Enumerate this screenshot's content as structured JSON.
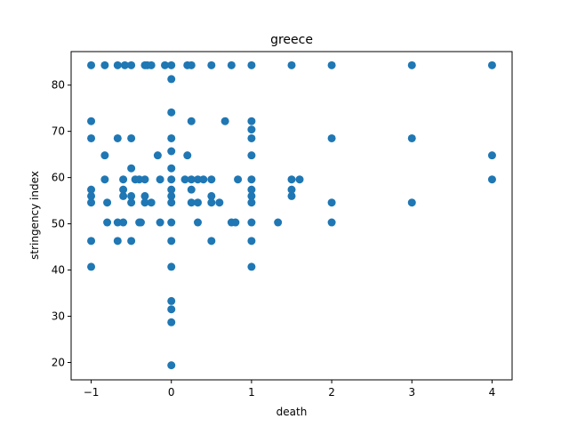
{
  "chart_data": {
    "type": "scatter",
    "title": "greece",
    "xlabel": "death",
    "ylabel": "stringency index",
    "xlim": [
      -1.25,
      4.25
    ],
    "ylim": [
      16.25,
      87.25
    ],
    "xticks": [
      -1,
      0,
      1,
      2,
      3,
      4
    ],
    "yticks": [
      20,
      30,
      40,
      50,
      60,
      70,
      80
    ],
    "grid": false,
    "color": "#1f77b4",
    "points": [
      [
        -1,
        84.3
      ],
      [
        -1,
        72.2
      ],
      [
        -1,
        68.5
      ],
      [
        -1,
        57.4
      ],
      [
        -1,
        56.0
      ],
      [
        -1,
        54.6
      ],
      [
        -1,
        46.3
      ],
      [
        -1,
        40.7
      ],
      [
        -0.83,
        84.3
      ],
      [
        -0.67,
        84.3
      ],
      [
        -0.58,
        84.3
      ],
      [
        -0.5,
        84.3
      ],
      [
        -0.33,
        84.3
      ],
      [
        -0.3,
        84.3
      ],
      [
        -0.25,
        84.3
      ],
      [
        -0.08,
        84.3
      ],
      [
        0,
        84.3
      ],
      [
        0.2,
        84.3
      ],
      [
        0.25,
        84.3
      ],
      [
        0.5,
        84.3
      ],
      [
        0.75,
        84.3
      ],
      [
        1,
        84.3
      ],
      [
        1.5,
        84.3
      ],
      [
        2,
        84.3
      ],
      [
        3,
        84.3
      ],
      [
        4,
        84.3
      ],
      [
        0,
        81.3
      ],
      [
        0,
        74.1
      ],
      [
        0.25,
        72.2
      ],
      [
        0.67,
        72.2
      ],
      [
        1,
        72.2
      ],
      [
        1,
        70.4
      ],
      [
        -0.67,
        68.5
      ],
      [
        -0.5,
        68.5
      ],
      [
        0,
        68.5
      ],
      [
        1,
        68.5
      ],
      [
        2,
        68.5
      ],
      [
        3,
        68.5
      ],
      [
        0,
        65.7
      ],
      [
        -0.83,
        64.8
      ],
      [
        -0.17,
        64.8
      ],
      [
        0.2,
        64.8
      ],
      [
        1,
        64.8
      ],
      [
        4,
        64.8
      ],
      [
        -0.5,
        62.0
      ],
      [
        0,
        62.0
      ],
      [
        -0.83,
        59.6
      ],
      [
        -0.6,
        59.6
      ],
      [
        -0.45,
        59.6
      ],
      [
        -0.4,
        59.6
      ],
      [
        -0.33,
        59.6
      ],
      [
        -0.14,
        59.6
      ],
      [
        0,
        59.6
      ],
      [
        0.17,
        59.6
      ],
      [
        0.25,
        59.6
      ],
      [
        0.33,
        59.6
      ],
      [
        0.4,
        59.6
      ],
      [
        0.5,
        59.6
      ],
      [
        0.83,
        59.6
      ],
      [
        1,
        59.6
      ],
      [
        1.5,
        59.6
      ],
      [
        1.6,
        59.6
      ],
      [
        4,
        59.6
      ],
      [
        -0.6,
        57.4
      ],
      [
        0,
        57.4
      ],
      [
        0.25,
        57.4
      ],
      [
        1,
        57.4
      ],
      [
        1.5,
        57.4
      ],
      [
        -0.6,
        56.0
      ],
      [
        -0.5,
        56.0
      ],
      [
        -0.33,
        56.0
      ],
      [
        0,
        56.0
      ],
      [
        0.5,
        56.0
      ],
      [
        1,
        56.0
      ],
      [
        1.5,
        56.0
      ],
      [
        -0.8,
        54.6
      ],
      [
        -0.5,
        54.6
      ],
      [
        -0.33,
        54.6
      ],
      [
        -0.25,
        54.6
      ],
      [
        0,
        54.6
      ],
      [
        0.25,
        54.6
      ],
      [
        0.33,
        54.6
      ],
      [
        0.5,
        54.6
      ],
      [
        0.6,
        54.6
      ],
      [
        1,
        54.6
      ],
      [
        2,
        54.6
      ],
      [
        3,
        54.6
      ],
      [
        -0.8,
        50.3
      ],
      [
        -0.67,
        50.3
      ],
      [
        -0.6,
        50.3
      ],
      [
        -0.4,
        50.3
      ],
      [
        -0.38,
        50.3
      ],
      [
        -0.14,
        50.3
      ],
      [
        0,
        50.3
      ],
      [
        0.33,
        50.3
      ],
      [
        0.75,
        50.3
      ],
      [
        0.8,
        50.3
      ],
      [
        1,
        50.3
      ],
      [
        1.33,
        50.3
      ],
      [
        2,
        50.3
      ],
      [
        -0.67,
        46.3
      ],
      [
        -0.5,
        46.3
      ],
      [
        0,
        46.3
      ],
      [
        0.5,
        46.3
      ],
      [
        1,
        46.3
      ],
      [
        0,
        40.7
      ],
      [
        1,
        40.7
      ],
      [
        0,
        33.3
      ],
      [
        0,
        31.5
      ],
      [
        0,
        28.7
      ],
      [
        0,
        19.4
      ]
    ]
  }
}
